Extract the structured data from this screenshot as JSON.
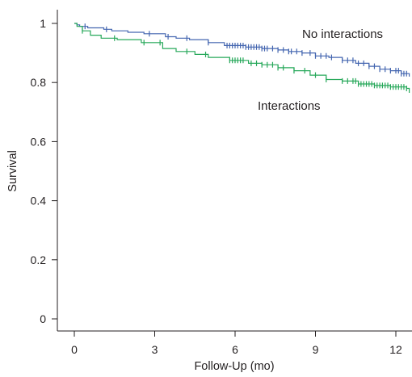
{
  "chart_data": {
    "type": "line",
    "title": "",
    "xlabel": "Follow-Up (mo)",
    "ylabel": "Survival",
    "xlim": [
      0,
      12.5
    ],
    "ylim": [
      0,
      1.05
    ],
    "x_ticks": [
      0,
      3,
      6,
      9,
      12
    ],
    "x_tick_labels": [
      "0",
      "3",
      "6",
      "9",
      "12"
    ],
    "y_ticks": [
      0,
      0.2,
      0.4,
      0.6,
      0.8,
      1
    ],
    "y_tick_labels": [
      "0",
      "0.2",
      "0.4",
      "0.6",
      "0.8",
      "1"
    ],
    "grid": false,
    "legend": "none",
    "series": [
      {
        "name": "No interactions",
        "color": "#4466b0",
        "x": [
          0,
          0.1,
          0.2,
          0.5,
          1.1,
          1.4,
          2.0,
          2.6,
          3.4,
          3.8,
          4.3,
          5.0,
          5.6,
          6.4,
          7.0,
          7.6,
          8.0,
          8.5,
          9.0,
          9.5,
          10.0,
          10.5,
          11.0,
          11.4,
          11.8,
          12.2,
          12.5
        ],
        "y": [
          1.0,
          0.995,
          0.99,
          0.985,
          0.98,
          0.975,
          0.97,
          0.965,
          0.955,
          0.95,
          0.945,
          0.935,
          0.925,
          0.92,
          0.915,
          0.91,
          0.905,
          0.9,
          0.89,
          0.885,
          0.875,
          0.865,
          0.855,
          0.845,
          0.84,
          0.83,
          0.82
        ]
      },
      {
        "name": "Interactions",
        "color": "#27a85a",
        "x": [
          0,
          0.1,
          0.3,
          0.6,
          1.0,
          1.6,
          2.5,
          3.3,
          3.8,
          4.5,
          5.0,
          5.8,
          6.5,
          7.0,
          7.6,
          8.2,
          8.8,
          9.4,
          10.0,
          10.6,
          11.2,
          11.8,
          12.4,
          12.5
        ],
        "y": [
          1.0,
          0.99,
          0.975,
          0.96,
          0.95,
          0.945,
          0.935,
          0.915,
          0.905,
          0.895,
          0.885,
          0.875,
          0.865,
          0.86,
          0.85,
          0.84,
          0.825,
          0.81,
          0.805,
          0.795,
          0.79,
          0.785,
          0.78,
          0.765
        ]
      }
    ],
    "censor_marks": [
      {
        "series": 0,
        "x": [
          0.4,
          1.2,
          2.8,
          3.5,
          4.2,
          5.0,
          5.7,
          5.8,
          5.9,
          6.0,
          6.1,
          6.2,
          6.3,
          6.4,
          6.5,
          6.6,
          6.7,
          6.8,
          6.9,
          7.0,
          7.1,
          7.2,
          7.4,
          7.6,
          7.8,
          8.0,
          8.1,
          8.3,
          8.5,
          8.8,
          9.0,
          9.2,
          9.4,
          9.6,
          10.0,
          10.2,
          10.4,
          10.6,
          10.8,
          11.0,
          11.2,
          11.4,
          11.6,
          11.8,
          12.0,
          12.1,
          12.2,
          12.3,
          12.4
        ]
      },
      {
        "series": 1,
        "x": [
          0.3,
          1.5,
          2.6,
          3.2,
          4.2,
          4.9,
          5.8,
          5.9,
          6.0,
          6.1,
          6.2,
          6.3,
          6.6,
          6.8,
          7.0,
          7.2,
          7.4,
          7.6,
          7.8,
          8.2,
          8.6,
          9.0,
          9.4,
          10.0,
          10.2,
          10.4,
          10.5,
          10.6,
          10.7,
          10.8,
          10.9,
          11.0,
          11.1,
          11.2,
          11.3,
          11.4,
          11.5,
          11.6,
          11.7,
          11.8,
          11.9,
          12.0,
          12.1,
          12.2,
          12.3,
          12.4
        ]
      }
    ]
  }
}
